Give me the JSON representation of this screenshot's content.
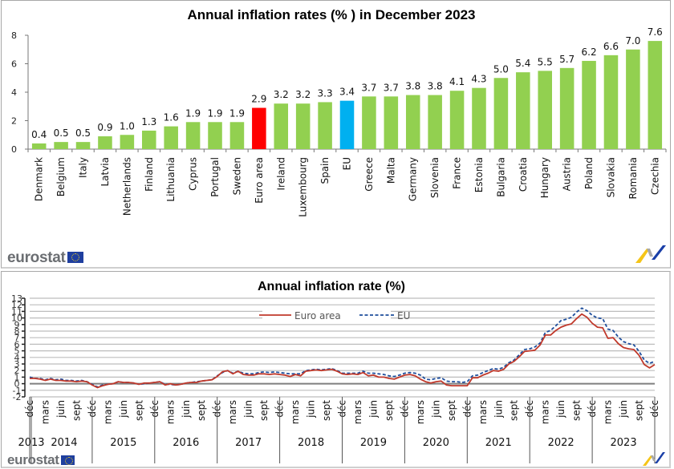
{
  "brand": {
    "name": "eurostat",
    "flag_icon": "eu-flag-icon",
    "logo_icon": "eurostat-swoosh-logo-icon"
  },
  "chart_data": [
    {
      "type": "bar",
      "title": "Annual inflation rates (% ) in December 2023",
      "xlabel": "",
      "ylabel": "",
      "ylim": [
        0,
        8
      ],
      "yticks": [
        0,
        2,
        4,
        6,
        8
      ],
      "grid": false,
      "categories": [
        "Denmark",
        "Belgium",
        "Italy",
        "Latvia",
        "Netherlands",
        "Finland",
        "Lithuania",
        "Cyprus",
        "Portugal",
        "Sweden",
        "Euro area",
        "Ireland",
        "Luxembourg",
        "Spain",
        "EU",
        "Greece",
        "Malta",
        "Germany",
        "Slovenia",
        "France",
        "Estonia",
        "Bulgaria",
        "Croatia",
        "Hungary",
        "Austria",
        "Poland",
        "Slovakia",
        "Romania",
        "Czechia"
      ],
      "values": [
        0.4,
        0.5,
        0.5,
        0.9,
        1.0,
        1.3,
        1.6,
        1.9,
        1.9,
        1.9,
        2.9,
        3.2,
        3.2,
        3.3,
        3.4,
        3.7,
        3.7,
        3.8,
        3.8,
        4.1,
        4.3,
        5.0,
        5.4,
        5.5,
        5.7,
        6.2,
        6.6,
        7.0,
        7.6
      ],
      "data_labels": [
        "0.4",
        "0.5",
        "0.5",
        "0.9",
        "1.0",
        "1.3",
        "1.6",
        "1.9",
        "1.9",
        "1.9",
        "2.9",
        "3.2",
        "3.2",
        "3.3",
        "3.4",
        "3.7",
        "3.7",
        "3.8",
        "3.8",
        "4.1",
        "4.3",
        "5.0",
        "5.4",
        "5.5",
        "5.7",
        "6.2",
        "6.6",
        "7.0",
        "7.6"
      ],
      "colors": {
        "default": "#92d050",
        "Euro area": "#ff0000",
        "EU": "#00b0f0"
      }
    },
    {
      "type": "line",
      "title": "Annual inflation rate (%)",
      "xlabel": "",
      "ylabel": "",
      "ylim": [
        -2,
        13
      ],
      "yticks": [
        -2,
        -1,
        0,
        1,
        2,
        3,
        4,
        5,
        6,
        7,
        8,
        9,
        10,
        11,
        12,
        13
      ],
      "grid": true,
      "legend": {
        "placement": "top-center",
        "entries": [
          "Euro area",
          "EU"
        ]
      },
      "x_start": "2013-12",
      "x_end": "2023-12",
      "month_tick_labels": [
        "déc",
        "mars",
        "juin",
        "sept"
      ],
      "year_labels": [
        "2013",
        "2014",
        "2015",
        "2016",
        "2017",
        "2018",
        "2019",
        "2020",
        "2021",
        "2022",
        "2023"
      ],
      "series": [
        {
          "name": "Euro area",
          "color": "#c0392b",
          "style": "solid",
          "values": [
            0.8,
            0.8,
            0.7,
            0.5,
            0.7,
            0.5,
            0.5,
            0.4,
            0.4,
            0.3,
            0.4,
            0.3,
            -0.2,
            -0.6,
            -0.3,
            -0.1,
            0.0,
            0.3,
            0.2,
            0.2,
            0.1,
            -0.1,
            0.1,
            0.1,
            0.2,
            0.3,
            -0.2,
            0.0,
            -0.2,
            -0.1,
            0.1,
            0.2,
            0.2,
            0.4,
            0.5,
            0.6,
            1.1,
            1.8,
            2.0,
            1.5,
            1.9,
            1.4,
            1.3,
            1.3,
            1.5,
            1.5,
            1.4,
            1.5,
            1.4,
            1.3,
            1.1,
            1.4,
            1.2,
            1.9,
            2.0,
            2.1,
            2.0,
            2.1,
            2.2,
            1.9,
            1.5,
            1.4,
            1.5,
            1.4,
            1.7,
            1.2,
            1.3,
            1.0,
            1.0,
            0.8,
            0.7,
            1.0,
            1.3,
            1.4,
            1.2,
            0.7,
            0.3,
            0.1,
            0.3,
            0.4,
            -0.2,
            -0.3,
            -0.3,
            -0.3,
            -0.3,
            0.9,
            0.9,
            1.3,
            1.6,
            2.0,
            1.9,
            2.2,
            3.0,
            3.4,
            4.1,
            4.9,
            5.0,
            5.1,
            5.9,
            7.4,
            7.4,
            8.1,
            8.6,
            8.9,
            9.1,
            9.9,
            10.6,
            10.1,
            9.2,
            8.6,
            8.5,
            6.9,
            7.0,
            6.1,
            5.5,
            5.3,
            5.2,
            4.3,
            2.9,
            2.4,
            2.9
          ]
        },
        {
          "name": "EU",
          "color": "#1f4e9c",
          "style": "dashed",
          "values": [
            1.0,
            0.8,
            0.8,
            0.6,
            0.8,
            0.6,
            0.7,
            0.5,
            0.5,
            0.4,
            0.5,
            0.3,
            -0.1,
            -0.5,
            -0.2,
            -0.1,
            0.0,
            0.3,
            0.2,
            0.2,
            0.1,
            -0.1,
            0.0,
            0.1,
            0.2,
            0.3,
            -0.1,
            -0.1,
            -0.2,
            -0.1,
            0.1,
            0.2,
            0.3,
            0.4,
            0.5,
            0.6,
            1.2,
            1.7,
            2.0,
            1.6,
            1.9,
            1.6,
            1.5,
            1.5,
            1.7,
            1.8,
            1.7,
            1.8,
            1.7,
            1.6,
            1.5,
            1.5,
            1.5,
            2.0,
            2.1,
            2.2,
            2.1,
            2.2,
            2.3,
            2.0,
            1.6,
            1.6,
            1.6,
            1.6,
            1.9,
            1.6,
            1.6,
            1.5,
            1.4,
            1.2,
            1.1,
            1.3,
            1.6,
            1.7,
            1.6,
            1.3,
            0.7,
            0.6,
            0.8,
            0.9,
            0.4,
            0.3,
            0.3,
            0.2,
            0.3,
            1.2,
            1.3,
            1.7,
            2.0,
            2.3,
            2.2,
            2.5,
            3.2,
            3.6,
            4.4,
            5.2,
            5.3,
            5.6,
            6.2,
            7.8,
            8.1,
            8.8,
            9.6,
            9.8,
            10.1,
            10.9,
            11.5,
            11.1,
            10.4,
            10.0,
            9.9,
            8.3,
            8.1,
            7.1,
            6.4,
            6.1,
            5.9,
            4.9,
            3.6,
            3.1,
            3.4
          ]
        }
      ]
    }
  ]
}
